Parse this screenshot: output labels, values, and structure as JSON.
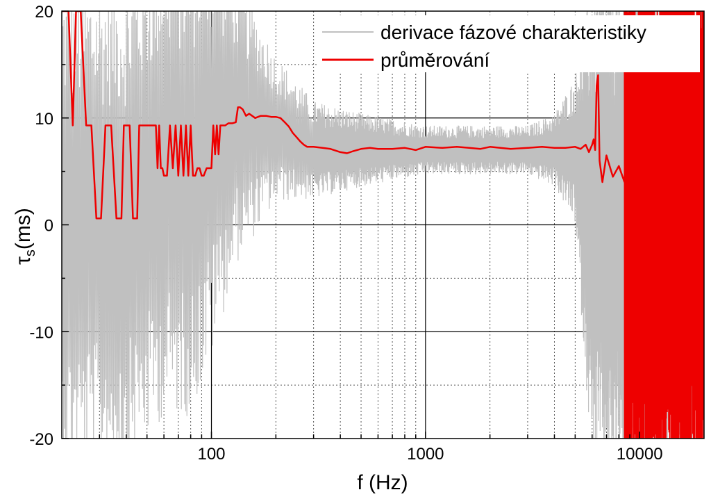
{
  "chart_data": {
    "type": "line",
    "xlabel": "f (Hz)",
    "ylabel": "τs(ms)",
    "ylabel_main": "τ",
    "ylabel_sub": "s",
    "ylabel_rest": "(ms)",
    "x_scale": "log",
    "xlim": [
      20,
      20000
    ],
    "ylim": [
      -20,
      20
    ],
    "x_ticks": [
      {
        "value": 100,
        "label": "100"
      },
      {
        "value": 1000,
        "label": "1000"
      },
      {
        "value": 10000,
        "label": "10000"
      }
    ],
    "y_ticks": [
      {
        "value": -20,
        "label": "-20"
      },
      {
        "value": -10,
        "label": "-10"
      },
      {
        "value": 0,
        "label": "0"
      },
      {
        "value": 10,
        "label": "10"
      },
      {
        "value": 20,
        "label": "20"
      }
    ],
    "grid": true,
    "legend_position": "top-right",
    "series": [
      {
        "name": "derivace fázové charakteristiky",
        "color": "#c0c0c0",
        "style": "dense noisy oscillation",
        "x": [
          20,
          30,
          40,
          60,
          80,
          100,
          130,
          200,
          300,
          500,
          1000,
          2000,
          3000,
          4000,
          5000,
          6000,
          8000,
          10000,
          20000
        ],
        "y": [
          0,
          0,
          0,
          5,
          5,
          8,
          10,
          9,
          7,
          7,
          7,
          7,
          7,
          7,
          7,
          0,
          0,
          0,
          0
        ],
        "spread": [
          20,
          20,
          20,
          20,
          20,
          18,
          12,
          6,
          4,
          3,
          2,
          2,
          2,
          3,
          6,
          20,
          20,
          20,
          20
        ]
      },
      {
        "name": "průměrování",
        "color": "#ee0000",
        "x": [
          20,
          21.5,
          22.5,
          23.3,
          24.5,
          26,
          27.5,
          29,
          30.5,
          32,
          34,
          36,
          38,
          39,
          40,
          41.5,
          43,
          45,
          46,
          47.5,
          49,
          51,
          53,
          55,
          56,
          57,
          58,
          59,
          60,
          62,
          64,
          66,
          68,
          70,
          72,
          74,
          76,
          78,
          80,
          82,
          84,
          86,
          88,
          90,
          92,
          95,
          98,
          100,
          102,
          104,
          106,
          108,
          110,
          113,
          116,
          120,
          125,
          130,
          133,
          136,
          140,
          145,
          150,
          155,
          160,
          165,
          170,
          180,
          190,
          200,
          210,
          220,
          230,
          240,
          250,
          260,
          270,
          280,
          300,
          330,
          360,
          400,
          430,
          460,
          500,
          550,
          600,
          700,
          800,
          900,
          1000,
          1200,
          1400,
          1600,
          1800,
          2000,
          2500,
          3000,
          3500,
          4000,
          4500,
          5000,
          5300,
          5600,
          5800,
          6000,
          6100,
          6200,
          6300,
          6400,
          6500,
          6700,
          7000,
          7500,
          8000,
          8500,
          9000
        ],
        "y": [
          20,
          20,
          9.3,
          20,
          20,
          9.3,
          9.3,
          0.6,
          0.6,
          9.3,
          9.3,
          0.6,
          0.6,
          9.3,
          9.3,
          9.3,
          0.6,
          0.6,
          9.3,
          9.3,
          9.3,
          9.3,
          9.3,
          9.3,
          5.3,
          9.3,
          5.3,
          5.3,
          4.6,
          4.6,
          9.3,
          5.3,
          9.3,
          4.6,
          9.3,
          4.6,
          9.3,
          4.6,
          9.3,
          4.6,
          4.6,
          5.3,
          5.3,
          4.6,
          4.6,
          5.3,
          5.3,
          5.3,
          9.3,
          6.6,
          9.3,
          6.6,
          9.3,
          9.3,
          9.3,
          9.5,
          9.5,
          9.6,
          11,
          11,
          10.8,
          10.2,
          10.4,
          10.2,
          10,
          10.1,
          10.2,
          10.2,
          10.1,
          10.1,
          10,
          9.6,
          9.2,
          8.6,
          8.2,
          7.8,
          7.5,
          7.3,
          7.3,
          7.2,
          7.1,
          6.8,
          6.7,
          6.9,
          7.1,
          7.2,
          7.1,
          7.1,
          7.2,
          7.0,
          7.3,
          7.2,
          7.3,
          7.2,
          7.1,
          7.3,
          7.1,
          7.2,
          7.3,
          7.2,
          7.2,
          7.3,
          7.1,
          7.5,
          6.8,
          7.5,
          8,
          7.0,
          13,
          14,
          6,
          4.0,
          6.5,
          4.5,
          5.5,
          4.0,
          20
        ]
      }
    ],
    "annotations": []
  }
}
